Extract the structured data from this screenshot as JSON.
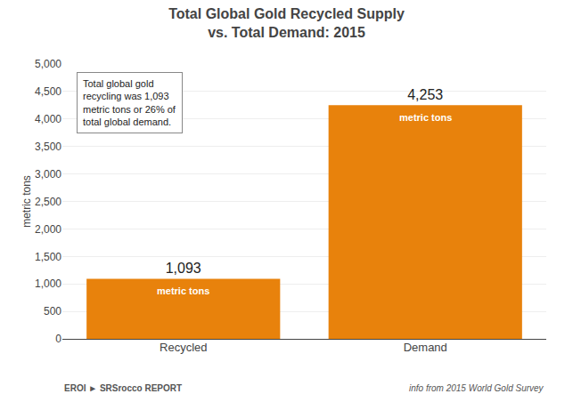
{
  "chart_data": {
    "type": "bar",
    "title": "Total Global Gold Recycled Supply",
    "subtitle": "vs. Total Demand: 2015",
    "categories": [
      "Recycled",
      "Demand"
    ],
    "values": [
      1093,
      4253
    ],
    "value_labels": [
      "1,093",
      "4,253"
    ],
    "data_labels": true,
    "color": "#E8820C",
    "ylabel": "metric tons",
    "ylim": [
      0,
      5000
    ],
    "yticks": [
      0,
      500,
      {
        "value": 1000,
        "label": "1,000"
      },
      {
        "value": 1500,
        "label": "1,500"
      },
      {
        "value": 2000,
        "label": "2,000"
      },
      {
        "value": 2500,
        "label": "2,500"
      },
      {
        "value": 3000,
        "label": "3,000"
      },
      {
        "value": 3500,
        "label": "3,500"
      },
      {
        "value": 4000,
        "label": "4,000"
      },
      {
        "value": 4500,
        "label": "4,500"
      },
      {
        "value": 5000,
        "label": "5,000"
      }
    ],
    "grid": true,
    "sub_labels": [
      "metric tons",
      "metric tons"
    ],
    "annotation": "Total global gold\nrecycling was 1,093\nmetric tons or 26% of\ntotal global demand.",
    "footer": "info from 2015 World Gold Survey",
    "logo": [
      "EROI",
      "►",
      "SRSrocco",
      "REPORT"
    ]
  }
}
